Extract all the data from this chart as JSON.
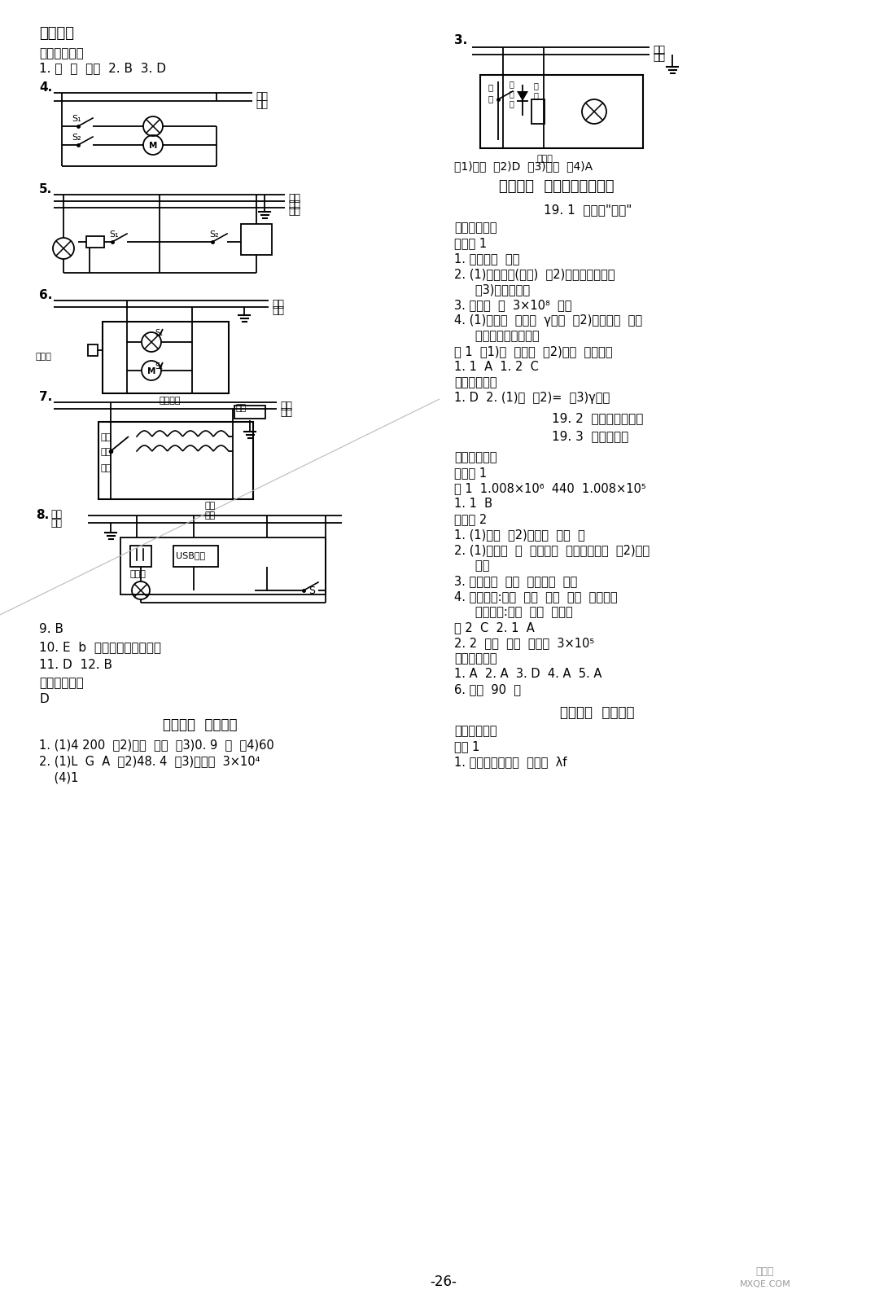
{
  "bg_color": "#ffffff",
  "page_num": "-26-",
  "left": {
    "title": "参考答案",
    "s1_header": "【考点定位】",
    "s1_line1": "1. 并  串  发光  2. B  3. D",
    "ans9": "9. B",
    "ans10": "10. E  b  用电器的总功率过大",
    "ans11": "11. D  12. B",
    "newq_header": "【新题速递】",
    "newq_ans": "D",
    "ch18_title": "第十八章  素养提升",
    "ch18_1": "1. (1)4 200  （2)三孔  变大  （3)0. 9  能  （4)60",
    "ch18_2": "2. (1)L  G  A  （2)48. 4  （3)低温挡  3×10⁴",
    "ch18_3": "    (4)1"
  },
  "right": {
    "d3_caption": "（1)并联  （2)D  （3)干路  （4)A",
    "ch19_title": "第十九章  电磁波与信息时代",
    "s191": "19. 1  最快的\"信使\"",
    "new_know": "【新知生成】",
    "know1": "知识点 1",
    "r1": "1. 迅速变化  电流",
    "r2": "2. (1)两个波峰(波谷)  （2)通过波峰或波谷",
    "r2b": "   （3)波传播快慢",
    "r3": "3. 不需要  能  3×10⁸  赫兹",
    "r4": "4. (1)可见光  紫外线  γ射线  （2)移动电话  数百",
    "r4b": "   千赫兹至数百兆赫兹",
    "ex1": "例 1  （1)否  一样大  （2)微波  中国电信",
    "r11": "1. 1  A  1. 2  C",
    "class_header": "【课堂过关】",
    "class1": "1. D  2. (1)短  （2)=  （3)γ射线",
    "s192": "19. 2  广播电视与通信",
    "s193": "19. 3  走进互联网",
    "new_know2": "【新知生成】",
    "know1b": "知识点 1",
    "ex1b": "例 1  1.008×10⁶  440  1.008×10⁵",
    "r11b": "1. 1  B",
    "know2": "知识点 2",
    "rb1": "1. (1)直线  （2)中继站  静止  三",
    "rb2": "2. (1)电磁波  高  频率单一  方向高度集中  （2)反射",
    "rb2b": "   信息",
    "rb3": "3. 电子邮件  照片  任何信息  光缆",
    "rb4": "4. 模拟通信:频率  振幅  频率  振幅  信号电流",
    "rb4b": "   数字通信:符号  组合  抗干扰",
    "ex2": "例 2  C  2. 1  A",
    "r22": "2. 2  反射  反射  电磁波  3×10⁵",
    "class2": "【课堂过关】",
    "class2_1": "1. A  2. A  3. D  4. A  5. A",
    "class2_2": "6. 大于  90  无",
    "ch19_end": "第十九章  章末复习",
    "review": "【复习引导】",
    "k1": "考点 1",
    "k1_1": "1. 电流的迅速变化  不需要  λf"
  }
}
